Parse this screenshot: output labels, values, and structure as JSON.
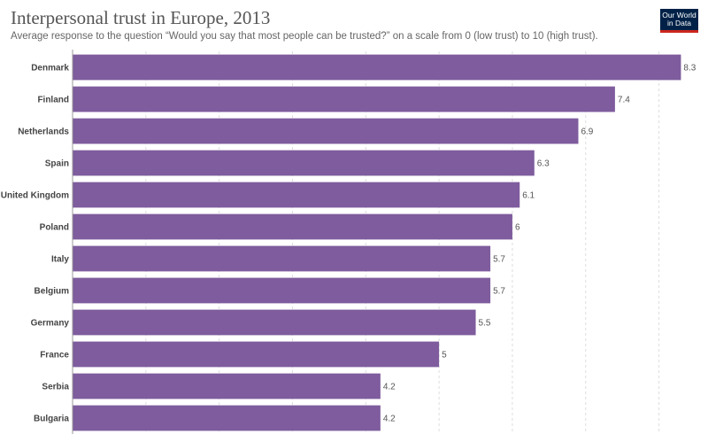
{
  "header": {
    "title": "Interpersonal trust in Europe, 2013",
    "subtitle": "Average response to the question “Would you say that most people can be trusted?” on a scale from 0 (low trust) to 10 (high trust).",
    "logo_text": "Our World in Data"
  },
  "colors": {
    "bar": "#7e5c9d",
    "gridline": "#dddddd",
    "axis": "#999999",
    "logo_bg": "#002147",
    "logo_accent": "#ce261e"
  },
  "chart_data": {
    "type": "bar",
    "orientation": "horizontal",
    "categories": [
      "Denmark",
      "Finland",
      "Netherlands",
      "Spain",
      "United Kingdom",
      "Poland",
      "Italy",
      "Belgium",
      "Germany",
      "France",
      "Serbia",
      "Bulgaria"
    ],
    "values": [
      8.3,
      7.4,
      6.9,
      6.3,
      6.1,
      6,
      5.7,
      5.7,
      5.5,
      5,
      4.2,
      4.2
    ],
    "value_labels": [
      "8.3",
      "7.4",
      "6.9",
      "6.3",
      "6.1",
      "6",
      "5.7",
      "5.7",
      "5.5",
      "5",
      "4.2",
      "4.2"
    ],
    "xlim": [
      0,
      8.5
    ],
    "grid": true,
    "data_labels": true
  }
}
